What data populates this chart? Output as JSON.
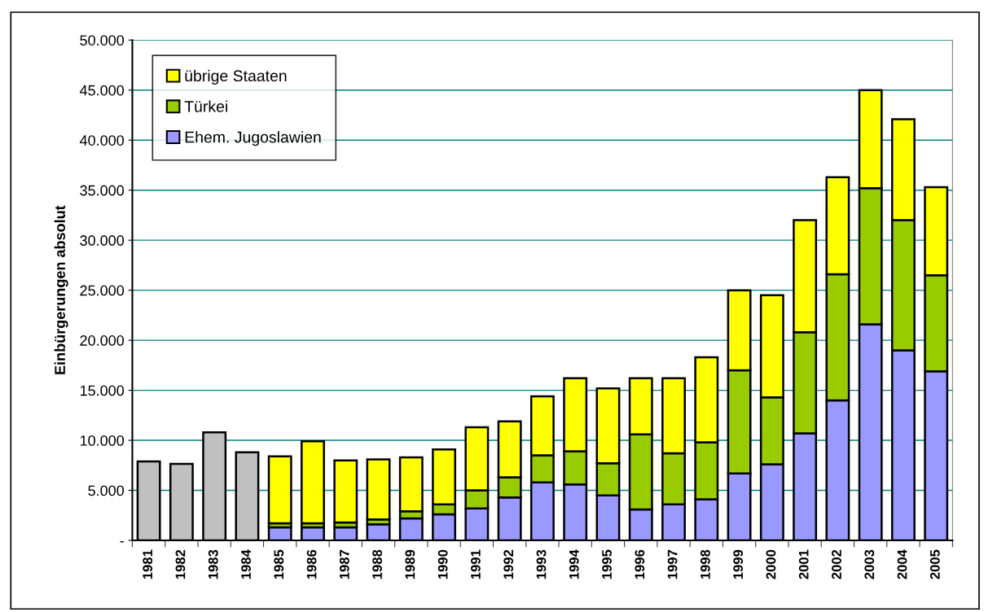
{
  "chart_data": {
    "type": "bar",
    "stacked": true,
    "ylabel": "Einbürgerungen absolut",
    "categories": [
      "1981",
      "1982",
      "1983",
      "1984",
      "1985",
      "1986",
      "1987",
      "1988",
      "1989",
      "1990",
      "1991",
      "1992",
      "1993",
      "1994",
      "1995",
      "1996",
      "1997",
      "1998",
      "1999",
      "2000",
      "2001",
      "2002",
      "2003",
      "2004",
      "2005"
    ],
    "series": [
      {
        "color": "#c0c0c0",
        "values": [
          7900,
          7650,
          10800,
          8800,
          null,
          null,
          null,
          null,
          null,
          null,
          null,
          null,
          null,
          null,
          null,
          null,
          null,
          null,
          null,
          null,
          null,
          null,
          null,
          null,
          null
        ]
      },
      {
        "name": "Ehem. Jugoslawien",
        "color": "#9999ff",
        "values": [
          null,
          null,
          null,
          null,
          1300,
          1300,
          1300,
          1600,
          2200,
          2600,
          3200,
          4300,
          5800,
          5600,
          4500,
          3100,
          3600,
          4100,
          6700,
          7600,
          10700,
          14000,
          21600,
          19000,
          16900
        ]
      },
      {
        "name": "Türkei",
        "color": "#99cc00",
        "values": [
          null,
          null,
          null,
          null,
          400,
          400,
          500,
          500,
          700,
          1000,
          1800,
          2000,
          2700,
          3300,
          3200,
          7500,
          5100,
          5700,
          10300,
          6700,
          10100,
          12600,
          13600,
          13000,
          9600
        ]
      },
      {
        "name": "übrige Staaten",
        "color": "#ffff00",
        "values": [
          null,
          null,
          null,
          null,
          6700,
          8200,
          6200,
          6000,
          5400,
          5500,
          6300,
          5600,
          5900,
          7300,
          7500,
          5600,
          7500,
          8500,
          8000,
          10200,
          11200,
          9700,
          9800,
          10100,
          8800
        ]
      }
    ],
    "ylim": [
      0,
      50000
    ],
    "yticks": [
      {
        "value": 0,
        "label": "-"
      },
      {
        "value": 5000,
        "label": "5.000"
      },
      {
        "value": 10000,
        "label": "10.000"
      },
      {
        "value": 15000,
        "label": "15.000"
      },
      {
        "value": 20000,
        "label": "20.000"
      },
      {
        "value": 25000,
        "label": "25.000"
      },
      {
        "value": 30000,
        "label": "30.000"
      },
      {
        "value": 35000,
        "label": "35.000"
      },
      {
        "value": 40000,
        "label": "40.000"
      },
      {
        "value": 45000,
        "label": "45.000"
      },
      {
        "value": 50000,
        "label": "50.000"
      }
    ],
    "grid": "y",
    "legend": "top left"
  }
}
